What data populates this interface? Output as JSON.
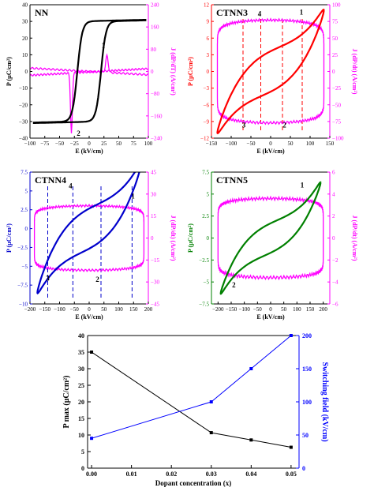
{
  "panels": [
    {
      "id": "NN",
      "title": "NN",
      "xlabel": "E (kV/cm)",
      "ylabel": "P (μC/cm²)",
      "y2label": "J (dP/dT) (A/cm²)",
      "xlim": [
        -100,
        100
      ],
      "ylim": [
        -40,
        40
      ],
      "y2lim": [
        -240,
        240
      ],
      "xticks": [
        -100,
        -75,
        -50,
        -25,
        0,
        25,
        50,
        75,
        100
      ],
      "yticks": [
        -40,
        -30,
        -20,
        -10,
        0,
        10,
        20,
        30,
        40
      ],
      "y2ticks": [
        -240,
        -160,
        -80,
        0,
        80,
        160,
        240
      ],
      "loop_color": "#000000",
      "current_color": "#ff00ff",
      "axis_color": "#000000",
      "y2_color": "#ff00ff",
      "loop": {
        "Ec": 20,
        "Pr": 25,
        "Psat": 30,
        "Emax": 95,
        "k": 0.17,
        "sharp": 0.12
      },
      "current": {
        "type": "nn",
        "peak_pos": [
          30,
          60
        ],
        "peak_neg": [
          -30,
          -220
        ],
        "drift": 12
      },
      "annotations": [
        {
          "text": "1",
          "x": 24,
          "y2": 85
        },
        {
          "text": "2",
          "x": -18,
          "y2": -232
        }
      ],
      "vlines": []
    },
    {
      "id": "CTNN3",
      "title": "CTNN3",
      "xlabel": "E (kV/cm)",
      "ylabel": "P (μC/cm²)",
      "y2label": "J (dP/dt) (A/cm²)",
      "xlim": [
        -150,
        150
      ],
      "ylim": [
        -12,
        12
      ],
      "y2lim": [
        -100,
        100
      ],
      "xticks": [
        -150,
        -100,
        -50,
        0,
        50,
        100,
        150
      ],
      "yticks": [
        -12,
        -9,
        -6,
        -3,
        0,
        3,
        6,
        9,
        12
      ],
      "y2ticks": [
        -100,
        -75,
        -50,
        -25,
        0,
        25,
        50,
        75,
        100
      ],
      "loop_color": "#ff0000",
      "current_color": "#ff00ff",
      "axis_color": "#ff0000",
      "y2_color": "#ff00ff",
      "loop": {
        "type": "ellipse",
        "Emax": 135,
        "Pmax": 11,
        "w": 2.6
      },
      "current": {
        "type": "flat",
        "Emax": 135,
        "plat": 77,
        "n": 6,
        "wobble": 2
      },
      "annotations": [
        {
          "text": "1",
          "x": 78,
          "y2": 85
        },
        {
          "text": "2",
          "x": 35,
          "y2": -84
        },
        {
          "text": "3",
          "x": -68,
          "y2": -84
        },
        {
          "text": "4",
          "x": -28,
          "y2": 83
        }
      ],
      "vlines": [
        80,
        30,
        -25,
        -70
      ]
    },
    {
      "id": "CTNN4",
      "title": "CTNN4",
      "xlabel": "E (kV/cm)",
      "ylabel": "P (μC/cm²)",
      "y2label": "J (dP/dt) (A/cm²)",
      "xlim": [
        -200,
        200
      ],
      "ylim": [
        -10,
        7.5
      ],
      "y2lim": [
        -45,
        45
      ],
      "xticks": [
        -200,
        -150,
        -100,
        -50,
        0,
        50,
        100,
        150,
        200
      ],
      "yticks": [
        -10,
        -7.5,
        -5,
        -2.5,
        0,
        2.5,
        5,
        7.5
      ],
      "y2ticks": [
        -45,
        -30,
        -15,
        0,
        15,
        30,
        45
      ],
      "loop_color": "#0000cc",
      "current_color": "#ff00ff",
      "axis_color": "#0000cc",
      "y2_color": "#ff00ff",
      "loop": {
        "type": "ellipse",
        "Emax": 175,
        "Pmax": 8.5,
        "w": 1.9
      },
      "current": {
        "type": "flat",
        "Emax": 185,
        "plat": 22,
        "n": 6,
        "wobble": 0.8
      },
      "annotations": [
        {
          "text": "1",
          "x": 148,
          "y2": 27
        },
        {
          "text": "2",
          "x": 28,
          "y2": -30
        },
        {
          "text": "3",
          "x": -140,
          "y2": -29
        },
        {
          "text": "4",
          "x": -63,
          "y2": 34
        }
      ],
      "vlines": [
        145,
        40,
        -55,
        -140
      ]
    },
    {
      "id": "CTNN5",
      "title": "CTNN5",
      "xlabel": "E (kV/cm)",
      "ylabel": "P (μC/cm²)",
      "y2label": "J (dP/dt) (A/cm²)",
      "xlim": [
        -225,
        225
      ],
      "ylim": [
        -7.5,
        7.5
      ],
      "y2lim": [
        -6,
        6
      ],
      "xticks": [
        -200,
        -150,
        -100,
        -50,
        0,
        50,
        100,
        150,
        200
      ],
      "yticks": [
        -7.5,
        -5,
        -2.5,
        0,
        2.5,
        5,
        7.5
      ],
      "y2ticks": [
        -6,
        -4,
        -2,
        0,
        2,
        4,
        6
      ],
      "loop_color": "#008000",
      "current_color": "#ff00ff",
      "axis_color": "#008000",
      "y2_color": "#ff00ff",
      "loop": {
        "type": "ellipse",
        "Emax": 190,
        "Pmax": 6.3,
        "w": 1.2
      },
      "current": {
        "type": "flat",
        "Emax": 200,
        "plat": 3.6,
        "n": 6,
        "wobble": 0.15
      },
      "annotations": [
        {
          "text": "1",
          "x": 120,
          "y2": 4.6
        },
        {
          "text": "2",
          "x": -140,
          "y2": -4.5
        }
      ],
      "vlines": []
    }
  ],
  "chart_data": {
    "type": "line",
    "xlabel": "Dopant concentration (x)",
    "ylabel": "P max (μC/cm²)",
    "y2label": "Switching field (kV/cm)",
    "x": [
      0.0,
      0.03,
      0.04,
      0.05
    ],
    "xlim": [
      -0.001,
      0.052
    ],
    "xticks": [
      "0.00",
      "0.01",
      "0.02",
      "0.03",
      "0.04",
      "0.05"
    ],
    "ylim": [
      0,
      40
    ],
    "yticks": [
      0,
      5,
      10,
      15,
      20,
      25,
      30,
      35,
      40
    ],
    "y2lim": [
      0,
      200
    ],
    "y2ticks": [
      0,
      50,
      100,
      150,
      200
    ],
    "series": [
      {
        "axis": "left",
        "values": [
          35.0,
          10.7,
          8.5,
          6.3
        ],
        "color": "#000000"
      },
      {
        "axis": "right",
        "values": [
          45,
          100,
          150,
          200
        ],
        "color": "#0000ff"
      }
    ]
  }
}
